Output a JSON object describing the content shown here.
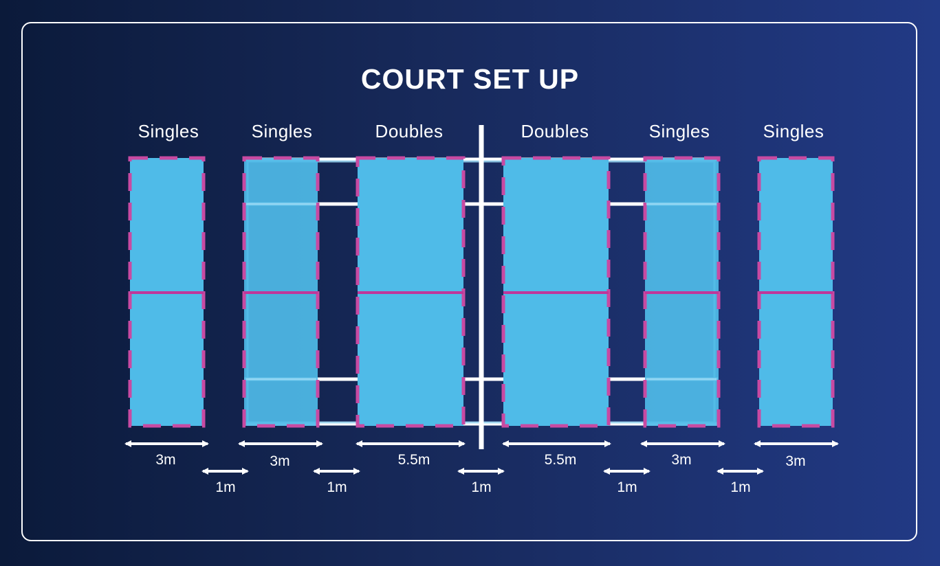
{
  "title": "COURT SET UP",
  "colors": {
    "court_fill": "#4fbbe8",
    "court_outline": "#c84aa2",
    "center_line": "#c0369a",
    "marking_lines": "#ffffff"
  },
  "courts": [
    {
      "label": "Singles",
      "width_label": "3m"
    },
    {
      "label": "Singles",
      "width_label": "3m"
    },
    {
      "label": "Doubles",
      "width_label": "5.5m"
    },
    {
      "label": "Doubles",
      "width_label": "5.5m"
    },
    {
      "label": "Singles",
      "width_label": "3m"
    },
    {
      "label": "Singles",
      "width_label": "3m"
    }
  ],
  "gaps": [
    {
      "label": "1m"
    },
    {
      "label": "1m"
    },
    {
      "label": "1m"
    },
    {
      "label": "1m"
    },
    {
      "label": "1m"
    }
  ]
}
